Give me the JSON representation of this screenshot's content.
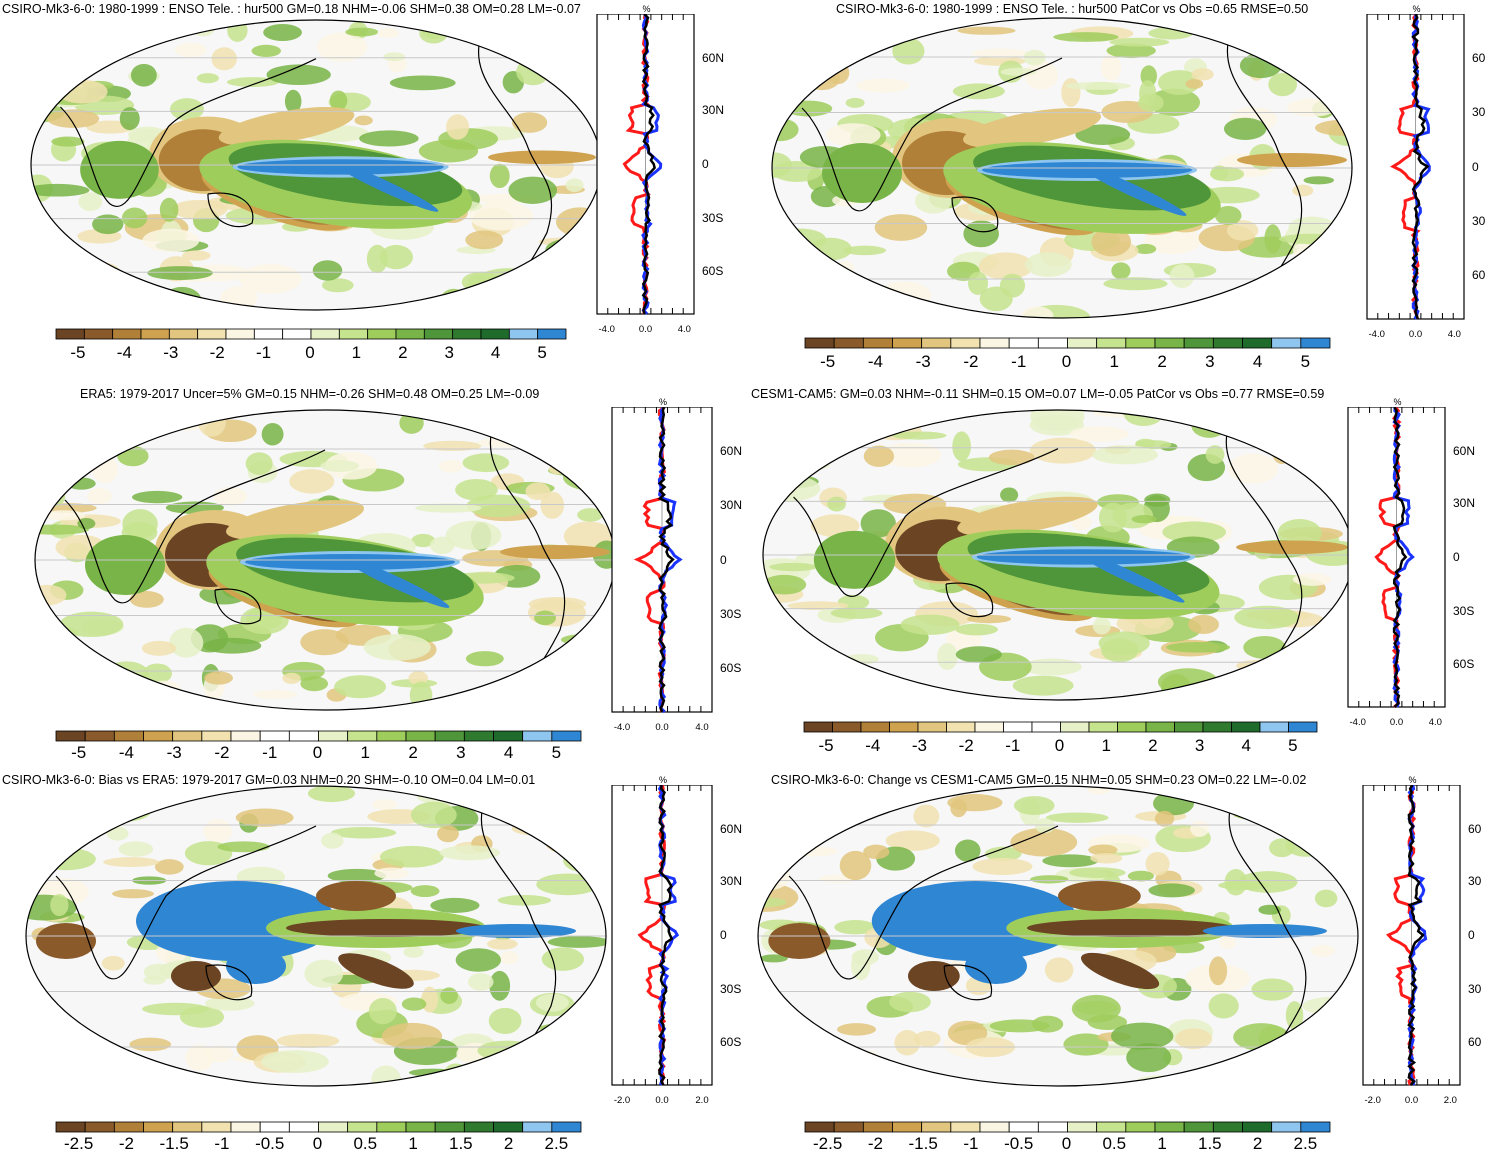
{
  "panels": [
    {
      "id": "p1",
      "title": "CSIRO-Mk3-6-0: 1980-1999 : ENSO Tele. : hur500 GM=0.18 NHM=-0.06 SHM=0.38 OM=0.28 LM=-0.07",
      "colorbar": {
        "labels": [
          "-5",
          "-4",
          "-3",
          "-2",
          "-1",
          "0",
          "1",
          "2",
          "3",
          "4",
          "5"
        ]
      },
      "zonal": {
        "unit": "%",
        "lat_ticks": [
          "60N",
          "30N",
          "0",
          "30S",
          "60S"
        ],
        "x_ticks": [
          "-4.0",
          "0.0",
          "4.0"
        ]
      }
    },
    {
      "id": "p2",
      "title": "CSIRO-Mk3-6-0: 1980-1999 : ENSO Tele. : hur500 PatCor vs Obs =0.65 RMSE=0.50",
      "colorbar": {
        "labels": [
          "-5",
          "-4",
          "-3",
          "-2",
          "-1",
          "0",
          "1",
          "2",
          "3",
          "4",
          "5"
        ]
      },
      "zonal": {
        "unit": "%",
        "lat_ticks": [
          "60",
          "30",
          "0",
          "30",
          "60"
        ],
        "x_ticks": [
          "-4.0",
          "0.0",
          "4.0"
        ]
      }
    },
    {
      "id": "p3",
      "title": "ERA5: 1979-2017 Uncer=5% GM=0.15 NHM=-0.26 SHM=0.48 OM=0.25 LM=-0.09",
      "colorbar": {
        "labels": [
          "-5",
          "-4",
          "-3",
          "-2",
          "-1",
          "0",
          "1",
          "2",
          "3",
          "4",
          "5"
        ]
      },
      "zonal": {
        "unit": "%",
        "lat_ticks": [
          "60N",
          "30N",
          "0",
          "30S",
          "60S"
        ],
        "x_ticks": [
          "-4.0",
          "0.0",
          "4.0"
        ]
      }
    },
    {
      "id": "p4",
      "title": "CESM1-CAM5: GM=0.03 NHM=-0.11 SHM=0.15 OM=0.07 LM=-0.05 PatCor vs Obs =0.77 RMSE=0.59",
      "colorbar": {
        "labels": [
          "-5",
          "-4",
          "-3",
          "-2",
          "-1",
          "0",
          "1",
          "2",
          "3",
          "4",
          "5"
        ]
      },
      "zonal": {
        "unit": "%",
        "lat_ticks": [
          "60N",
          "30N",
          "0",
          "30S",
          "60S"
        ],
        "x_ticks": [
          "-4.0",
          "0.0",
          "4.0"
        ]
      }
    },
    {
      "id": "p5",
      "title": "CSIRO-Mk3-6-0: Bias vs ERA5: 1979-2017 GM=0.03 NHM=0.20 SHM=-0.10 OM=0.04 LM=0.01",
      "colorbar": {
        "labels": [
          "-2.5",
          "-2",
          "-1.5",
          "-1",
          "-0.5",
          "0",
          "0.5",
          "1",
          "1.5",
          "2",
          "2.5"
        ]
      },
      "zonal": {
        "unit": "%",
        "lat_ticks": [
          "60N",
          "30N",
          "0",
          "30S",
          "60S"
        ],
        "x_ticks": [
          "-2.0",
          "0.0",
          "2.0"
        ]
      }
    },
    {
      "id": "p6",
      "title": "CSIRO-Mk3-6-0: Change vs CESM1-CAM5 GM=0.15 NHM=0.05 SHM=0.23 OM=0.22 LM=-0.02",
      "colorbar": {
        "labels": [
          "-2.5",
          "-2",
          "-1.5",
          "-1",
          "-0.5",
          "0",
          "0.5",
          "1",
          "1.5",
          "2",
          "2.5"
        ]
      },
      "zonal": {
        "unit": "%",
        "lat_ticks": [
          "60",
          "30",
          "0",
          "30",
          "60"
        ],
        "x_ticks": [
          "-2.0",
          "0.0",
          "2.0"
        ]
      }
    }
  ],
  "colors": {
    "palette": [
      "#6b4423",
      "#8a5a2b",
      "#b07f38",
      "#cfa24f",
      "#e2c57e",
      "#f1e2b0",
      "#fbf6e4",
      "#ffffff",
      "#ffffff",
      "#e6f1c8",
      "#c6e38e",
      "#9fcd5c",
      "#78b447",
      "#4f963a",
      "#2f7a2f",
      "#1e6b2c",
      "#8fc6ef",
      "#2f86d3"
    ],
    "series_red": "#ff1a1a",
    "series_blue": "#1a33ff",
    "series_black": "#000000"
  }
}
